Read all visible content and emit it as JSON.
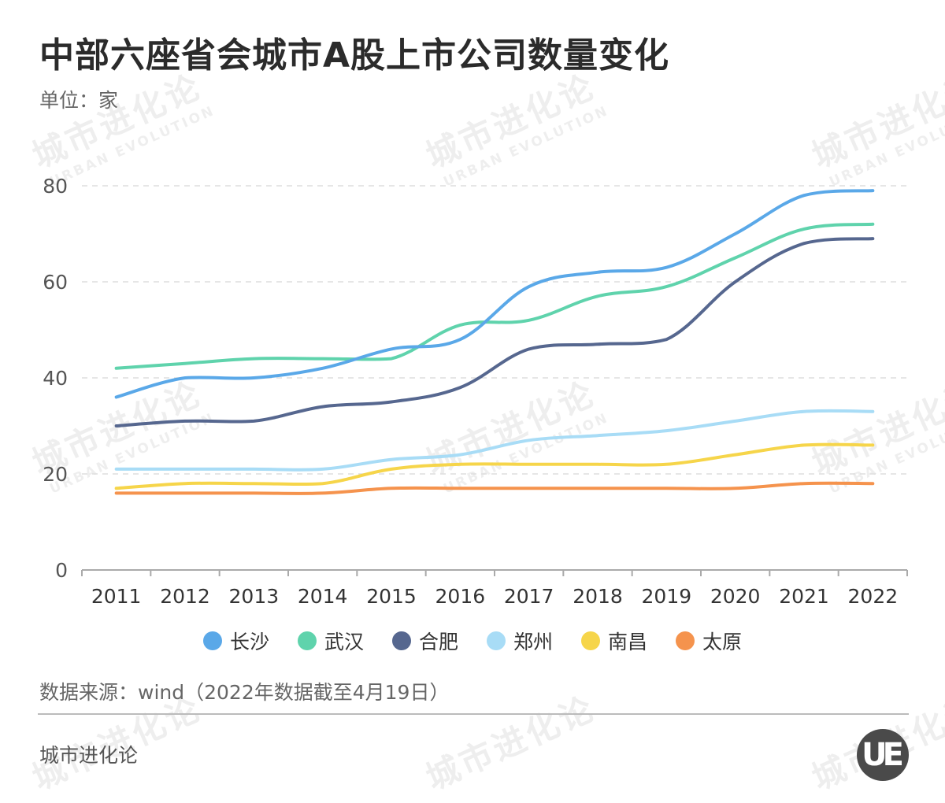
{
  "header": {
    "title": "中部六座省会城市A股上市公司数量变化",
    "unit": "单位：家"
  },
  "watermark": {
    "cn": "城市进化论",
    "en": "URBAN EVOLUTION"
  },
  "footer": {
    "source": "数据来源：wind（2022年数据截至4月19日）",
    "brand": "城市进化论",
    "logo_text": "UE"
  },
  "chart_data": {
    "type": "line",
    "title": "中部六座省会城市A股上市公司数量变化",
    "ylabel": "单位：家",
    "x": [
      "2011",
      "2012",
      "2013",
      "2014",
      "2015",
      "2016",
      "2017",
      "2018",
      "2019",
      "2020",
      "2021",
      "2022"
    ],
    "ylim": [
      0,
      80
    ],
    "yticks": [
      0,
      20,
      40,
      60,
      80
    ],
    "grid": true,
    "legend_position": "bottom",
    "series": [
      {
        "name": "长沙",
        "color": "#5aa8e8",
        "values": [
          36,
          40,
          40,
          42,
          46,
          48,
          59,
          62,
          63,
          70,
          78,
          79
        ]
      },
      {
        "name": "武汉",
        "color": "#5fd3ac",
        "values": [
          42,
          43,
          44,
          44,
          44,
          51,
          52,
          57,
          59,
          65,
          71,
          72
        ]
      },
      {
        "name": "合肥",
        "color": "#56678f",
        "values": [
          30,
          31,
          31,
          34,
          35,
          38,
          46,
          47,
          48,
          60,
          68,
          69
        ]
      },
      {
        "name": "郑州",
        "color": "#a8dcf6",
        "values": [
          21,
          21,
          21,
          21,
          23,
          24,
          27,
          28,
          29,
          31,
          33,
          33
        ]
      },
      {
        "name": "南昌",
        "color": "#f6d54a",
        "values": [
          17,
          18,
          18,
          18,
          21,
          22,
          22,
          22,
          22,
          24,
          26,
          26
        ]
      },
      {
        "name": "太原",
        "color": "#f5934d",
        "values": [
          16,
          16,
          16,
          16,
          17,
          17,
          17,
          17,
          17,
          17,
          18,
          18
        ]
      }
    ]
  }
}
